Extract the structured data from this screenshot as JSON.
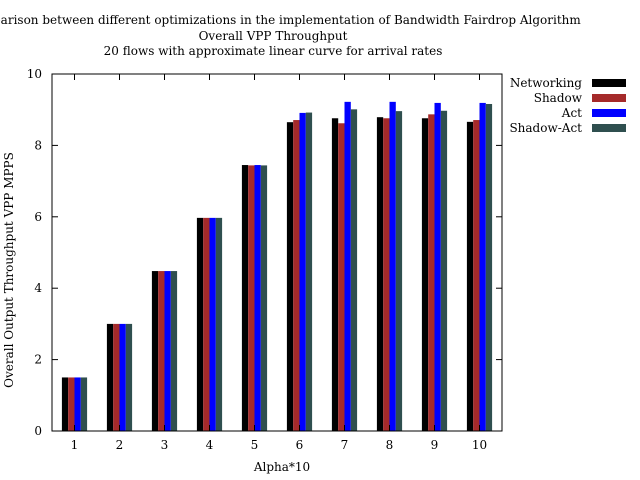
{
  "chart_data": {
    "type": "bar",
    "title_lines": [
      "Comparison between different optimizations in the implementation of Bandwidth Fairdrop Algorithm",
      "Overall VPP Throughput",
      "20 flows with approximate linear curve for arrival rates"
    ],
    "xlabel": "Alpha*10",
    "ylabel": "Overall Output Throughput VPP MPPS",
    "categories": [
      "1",
      "2",
      "3",
      "4",
      "5",
      "6",
      "7",
      "8",
      "9",
      "10"
    ],
    "ylim": [
      0,
      10
    ],
    "yticks": [
      "0",
      "2",
      "4",
      "6",
      "8",
      "10"
    ],
    "grid": false,
    "legend_position": "top-right, outside plot",
    "series": [
      {
        "name": "Networking",
        "color": "#000000",
        "values": [
          1.5,
          3.0,
          4.48,
          5.97,
          7.45,
          8.65,
          8.76,
          8.79,
          8.76,
          8.66
        ]
      },
      {
        "name": "Shadow",
        "color": "#a52a2a",
        "values": [
          1.5,
          3.0,
          4.48,
          5.97,
          7.44,
          8.71,
          8.62,
          8.76,
          8.87,
          8.71
        ]
      },
      {
        "name": "Act",
        "color": "#0000ff",
        "values": [
          1.5,
          3.0,
          4.48,
          5.97,
          7.45,
          8.91,
          9.22,
          9.22,
          9.19,
          9.19
        ]
      },
      {
        "name": "Shadow-Act",
        "color": "#2f4f4f",
        "values": [
          1.5,
          3.0,
          4.48,
          5.97,
          7.44,
          8.92,
          9.01,
          8.96,
          8.97,
          9.16
        ]
      }
    ]
  }
}
